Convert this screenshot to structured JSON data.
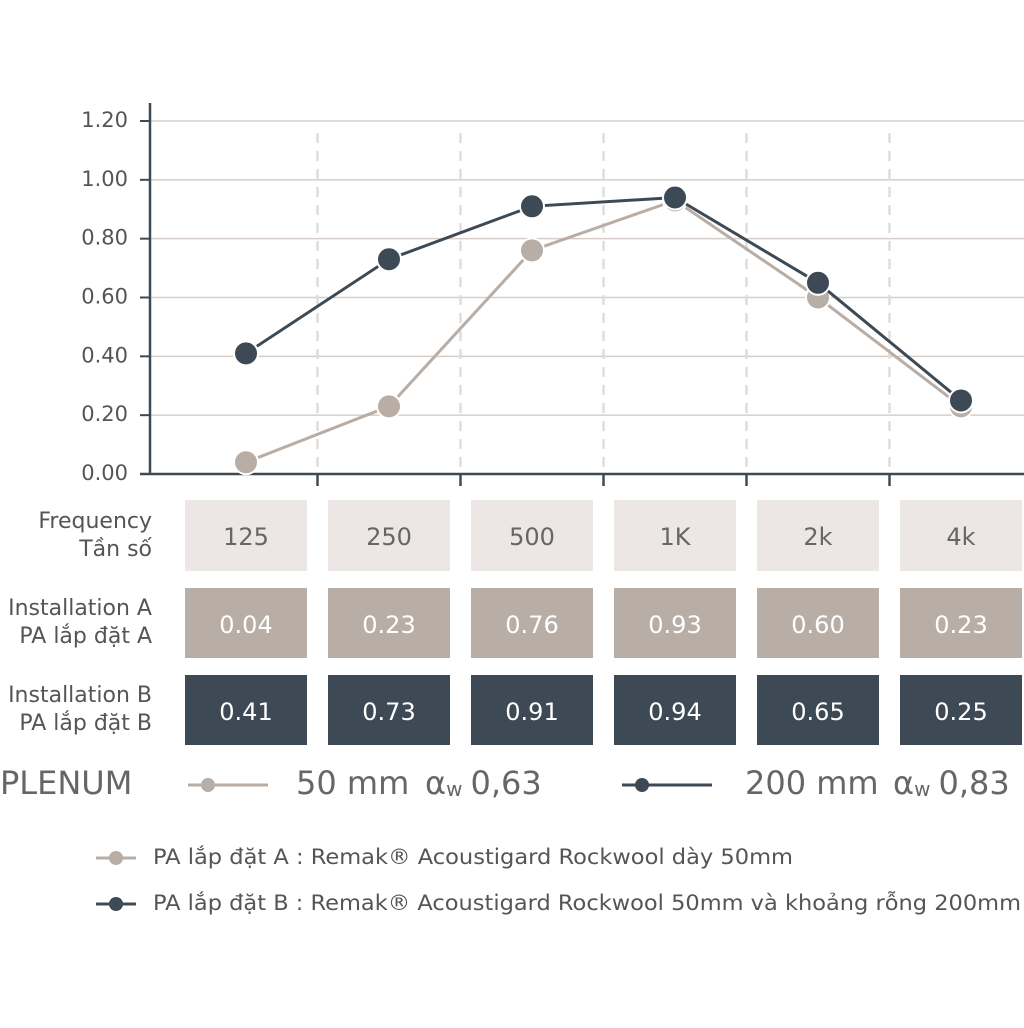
{
  "chart_data": {
    "type": "line",
    "categories": [
      "125",
      "250",
      "500",
      "1K",
      "2k",
      "4k"
    ],
    "category_row_label": [
      "Frequency",
      "Tần số"
    ],
    "ylim": [
      0,
      1.2
    ],
    "yticks": [
      {
        "value": 0,
        "label": "0.00"
      },
      {
        "value": 0.2,
        "label": "0.20"
      },
      {
        "value": 0.4,
        "label": "0.40"
      },
      {
        "value": 0.6,
        "label": "0.60"
      },
      {
        "value": 0.8,
        "label": "0.80"
      },
      {
        "value": 1,
        "label": "1.00"
      },
      {
        "value": 1.2,
        "label": "1.20"
      }
    ],
    "grid": true,
    "series": [
      {
        "name": "Installation A",
        "name_vi": "PA lắp đặt A",
        "color": "#b8aea6",
        "values": [
          0.04,
          0.23,
          0.76,
          0.93,
          0.6,
          0.23
        ],
        "value_labels": [
          "0.04",
          "0.23",
          "0.76",
          "0.93",
          "0.60",
          "0.23"
        ]
      },
      {
        "name": "Installation B",
        "name_vi": "PA lắp đặt B",
        "color": "#3d4a55",
        "values": [
          0.41,
          0.73,
          0.91,
          0.94,
          0.65,
          0.25
        ],
        "value_labels": [
          "0.41",
          "0.73",
          "0.91",
          "0.94",
          "0.65",
          "0.25"
        ]
      }
    ],
    "plenum": {
      "label": "PLENUM",
      "items": [
        {
          "thickness": "50 mm",
          "alpha_symbol": "α",
          "alpha_subscript": "w",
          "alpha_value": "0,63"
        },
        {
          "thickness": "200 mm",
          "alpha_symbol": "α",
          "alpha_subscript": "w",
          "alpha_value": "0,83"
        }
      ]
    },
    "legend": [
      "PA lắp đặt A : Remak® Acoustigard Rockwool dày 50mm",
      "PA lắp đặt B : Remak® Acoustigard Rockwool 50mm và khoảng rỗng 200mm"
    ]
  }
}
